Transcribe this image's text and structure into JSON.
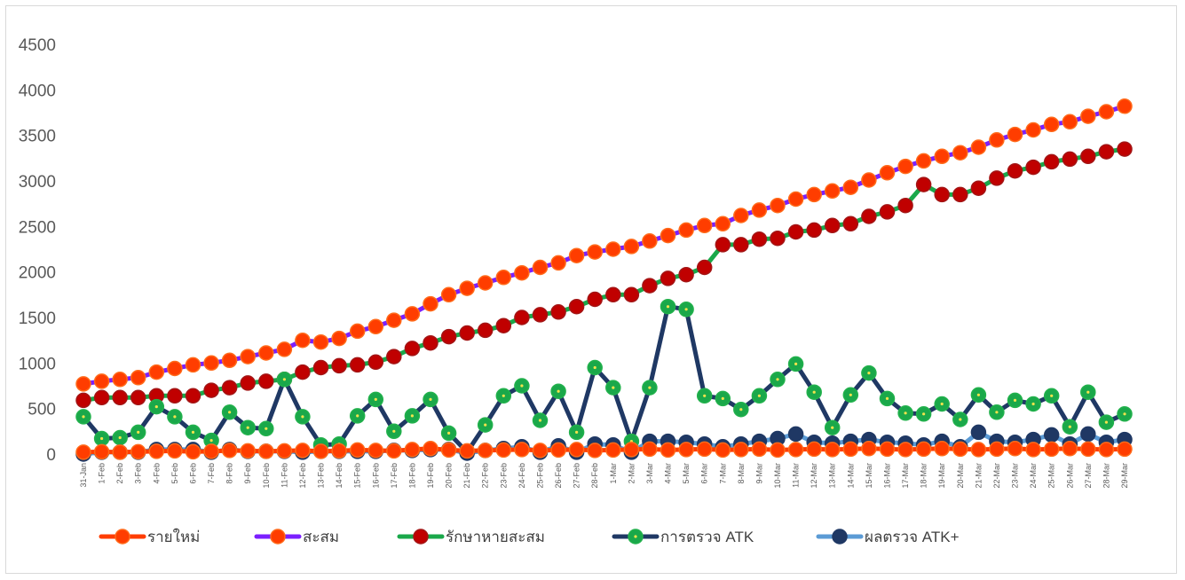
{
  "chart_data": {
    "type": "line",
    "title": "",
    "xlabel": "",
    "ylabel": "",
    "ylim": [
      0,
      4500
    ],
    "yticks": [
      0,
      500,
      1000,
      1500,
      2000,
      2500,
      3000,
      3500,
      4000,
      4500
    ],
    "grid": false,
    "legend_position": "bottom",
    "categories": [
      "31-Jan",
      "1-Feb",
      "2-Feb",
      "3-Feb",
      "4-Feb",
      "5-Feb",
      "6-Feb",
      "7-Feb",
      "8-Feb",
      "9-Feb",
      "10-Feb",
      "11-Feb",
      "12-Feb",
      "13-Feb",
      "14-Feb",
      "15-Feb",
      "16-Feb",
      "17-Feb",
      "18-Feb",
      "19-Feb",
      "20-Feb",
      "21-Feb",
      "22-Feb",
      "23-Feb",
      "24-Feb",
      "25-Feb",
      "26-Feb",
      "27-Feb",
      "28-Feb",
      "1-Mar",
      "2-Mar",
      "3-Mar",
      "4-Mar",
      "5-Mar",
      "6-Mar",
      "7-Mar",
      "8-Mar",
      "9-Mar",
      "10-Mar",
      "11-Mar",
      "12-Mar",
      "13-Mar",
      "14-Mar",
      "15-Mar",
      "16-Mar",
      "17-Mar",
      "18-Mar",
      "19-Mar",
      "20-Mar",
      "21-Mar",
      "22-Mar",
      "23-Mar",
      "24-Mar",
      "25-Mar",
      "26-Mar",
      "27-Mar",
      "28-Mar",
      "29-Mar"
    ],
    "series": [
      {
        "name": "รายใหม่",
        "line_color": "#ff3d00",
        "marker_fill": "#ff3d00",
        "marker_ring": "#ff6a1a",
        "values": [
          20,
          25,
          20,
          25,
          30,
          35,
          25,
          30,
          40,
          35,
          30,
          35,
          40,
          30,
          35,
          45,
          40,
          35,
          50,
          60,
          45,
          35,
          40,
          45,
          50,
          40,
          45,
          50,
          40,
          45,
          50,
          55,
          45,
          50,
          55,
          45,
          50,
          55,
          45,
          50,
          55,
          50,
          55,
          60,
          55,
          50,
          55,
          60,
          55,
          50,
          55,
          60,
          50,
          55,
          60,
          55,
          50,
          55
        ]
      },
      {
        "name": "สะสม",
        "line_color": "#7b1fff",
        "marker_fill": "#ff3d00",
        "marker_ring": "#ff6a1a",
        "values": [
          770,
          800,
          820,
          840,
          900,
          940,
          980,
          1000,
          1030,
          1070,
          1110,
          1150,
          1250,
          1230,
          1270,
          1350,
          1400,
          1470,
          1540,
          1650,
          1750,
          1820,
          1880,
          1940,
          1990,
          2050,
          2100,
          2180,
          2220,
          2250,
          2280,
          2340,
          2400,
          2460,
          2510,
          2530,
          2620,
          2680,
          2730,
          2800,
          2850,
          2890,
          2930,
          3010,
          3090,
          3160,
          3220,
          3270,
          3310,
          3370,
          3450,
          3510,
          3560,
          3620,
          3650,
          3710,
          3760,
          3820
        ]
      },
      {
        "name": "รักษาหายสะสม",
        "line_color": "#1aa84a",
        "marker_fill": "#c00000",
        "marker_ring": "#a31515",
        "values": [
          590,
          620,
          620,
          620,
          640,
          640,
          640,
          700,
          730,
          780,
          800,
          820,
          900,
          950,
          970,
          980,
          1010,
          1070,
          1160,
          1220,
          1290,
          1330,
          1360,
          1410,
          1500,
          1530,
          1560,
          1620,
          1700,
          1750,
          1750,
          1850,
          1930,
          1970,
          2050,
          2300,
          2300,
          2360,
          2370,
          2440,
          2460,
          2510,
          2530,
          2610,
          2660,
          2730,
          2960,
          2850,
          2850,
          2920,
          3030,
          3110,
          3150,
          3210,
          3240,
          3270,
          3320,
          3350
        ]
      },
      {
        "name": "การตรวจ ATK",
        "line_color": "#1f3864",
        "marker_fill": "#1aa84a",
        "marker_ring": "#22b14c",
        "values": [
          410,
          170,
          180,
          240,
          520,
          410,
          240,
          150,
          460,
          290,
          280,
          820,
          410,
          100,
          110,
          420,
          600,
          250,
          420,
          600,
          230,
          20,
          320,
          640,
          750,
          370,
          690,
          240,
          950,
          730,
          140,
          730,
          1620,
          1590,
          640,
          610,
          490,
          640,
          820,
          990,
          680,
          290,
          650,
          890,
          610,
          450,
          440,
          550,
          380,
          650,
          460,
          590,
          550,
          640,
          300,
          680,
          350,
          440
        ]
      },
      {
        "name": "ผลตรวจ ATK+",
        "line_color": "#5b9bd5",
        "marker_fill": "#1f3864",
        "marker_ring": "#1f3864",
        "values": [
          0,
          20,
          20,
          20,
          50,
          50,
          50,
          20,
          50,
          30,
          30,
          30,
          20,
          30,
          30,
          30,
          30,
          40,
          40,
          50,
          50,
          10,
          40,
          60,
          80,
          20,
          90,
          20,
          110,
          100,
          20,
          140,
          140,
          130,
          110,
          80,
          110,
          140,
          170,
          220,
          130,
          120,
          140,
          160,
          130,
          120,
          100,
          140,
          80,
          240,
          140,
          130,
          160,
          210,
          110,
          220,
          130,
          160
        ]
      }
    ]
  }
}
